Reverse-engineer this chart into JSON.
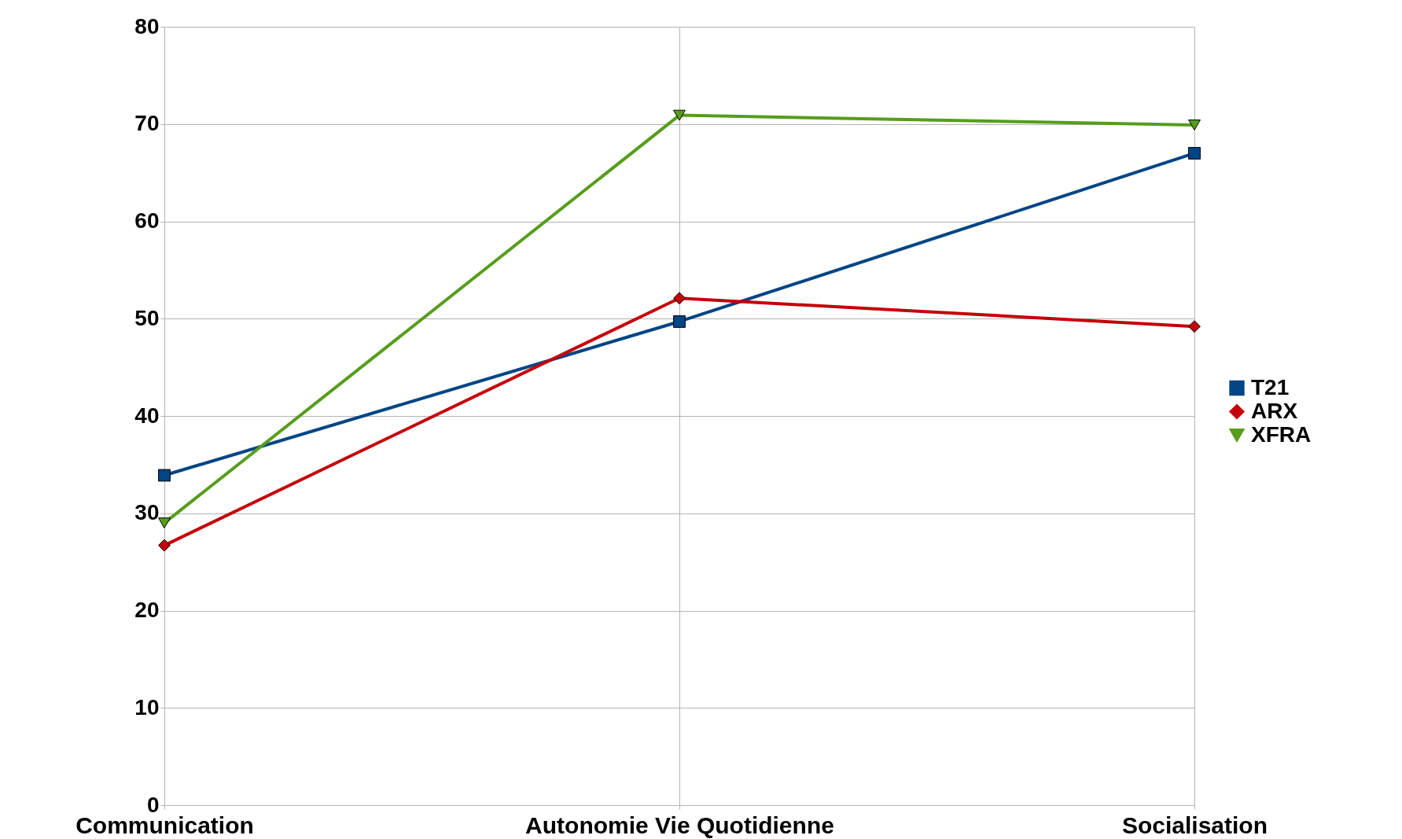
{
  "chart_data": {
    "type": "line",
    "categories": [
      "Communication",
      "Autonomie Vie Quotidienne",
      "Socialisation"
    ],
    "series": [
      {
        "name": "T21",
        "color": "#004586",
        "marker": "square",
        "values": [
          33.9,
          49.7,
          67.0
        ]
      },
      {
        "name": "ARX",
        "color": "#c5000b",
        "marker": "diamond",
        "values": [
          26.7,
          52.1,
          49.2
        ]
      },
      {
        "name": "XFRA",
        "color": "#579d1c",
        "marker": "triangle",
        "values": [
          29.0,
          70.9,
          69.9
        ]
      }
    ],
    "ylim": [
      0,
      80
    ],
    "yticks": [
      0,
      10,
      20,
      30,
      40,
      50,
      60,
      70,
      80
    ],
    "grid": true,
    "legend": "right",
    "line_style": "solid"
  }
}
